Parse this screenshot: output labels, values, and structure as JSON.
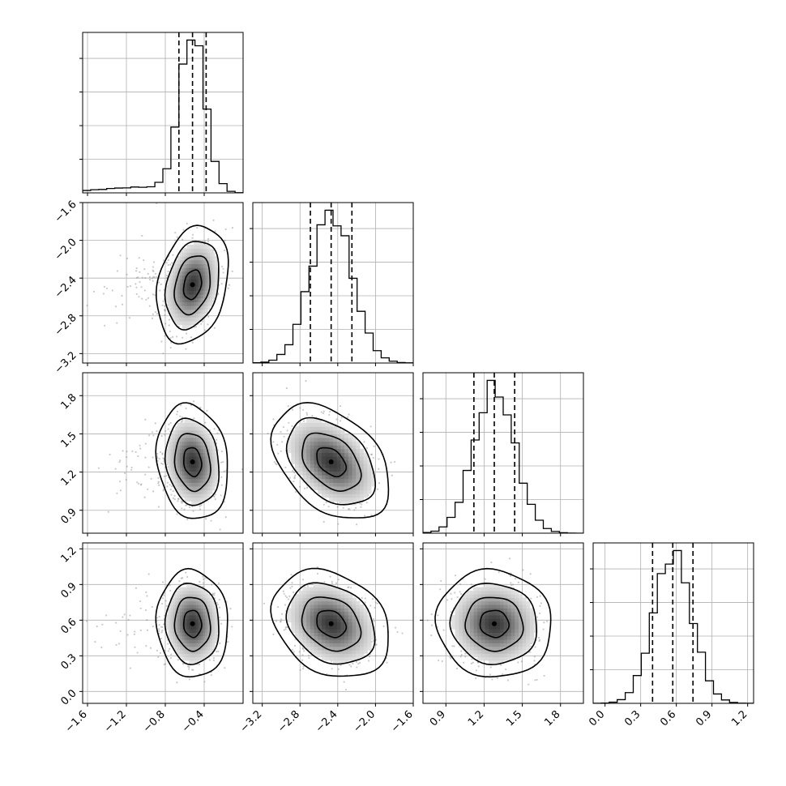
{
  "chart_data": {
    "type": "corner",
    "title": "",
    "parameters": [
      {
        "index": 0,
        "xlim": [
          -1.65,
          0.0
        ],
        "mean": -0.52,
        "std": 0.13,
        "quantiles": [
          -0.66,
          -0.52,
          -0.38
        ],
        "ticks": [
          -1.6,
          -1.2,
          -0.8,
          -0.4
        ],
        "tick_labels": [
          "−1.6",
          "−1.2",
          "−0.8",
          "−0.4"
        ]
      },
      {
        "index": 1,
        "xlim": [
          -3.3,
          -1.6
        ],
        "mean": -2.47,
        "std": 0.22,
        "quantiles": [
          -2.69,
          -2.47,
          -2.25
        ],
        "ticks": [
          -3.2,
          -2.8,
          -2.4,
          -2.0,
          -1.6
        ],
        "tick_labels": [
          "−3.2",
          "−2.8",
          "−2.4",
          "−2.0",
          "−1.6"
        ]
      },
      {
        "index": 2,
        "xlim": [
          0.72,
          1.98
        ],
        "mean": 1.28,
        "std": 0.16,
        "quantiles": [
          1.12,
          1.28,
          1.44
        ],
        "ticks": [
          0.9,
          1.2,
          1.5,
          1.8
        ],
        "tick_labels": [
          "0.9",
          "1.2",
          "1.5",
          "1.8"
        ]
      },
      {
        "index": 3,
        "xlim": [
          -0.1,
          1.25
        ],
        "mean": 0.57,
        "std": 0.16,
        "quantiles": [
          0.4,
          0.57,
          0.74
        ],
        "ticks": [
          0.0,
          0.3,
          0.6,
          0.9,
          1.2
        ],
        "tick_labels": [
          "0.0",
          "0.3",
          "0.6",
          "0.9",
          "1.2"
        ]
      }
    ],
    "correlations": [
      [
        0,
        1,
        0.25
      ],
      [
        0,
        2,
        -0.15
      ],
      [
        0,
        3,
        -0.05
      ],
      [
        1,
        2,
        -0.4
      ],
      [
        1,
        3,
        -0.25
      ],
      [
        2,
        3,
        -0.05
      ]
    ],
    "histogram_bins": 20,
    "quantile_levels": [
      0.16,
      0.5,
      0.84
    ],
    "contour_levels_sigma": [
      0.5,
      1.0,
      1.5,
      2.0
    ],
    "grid": true,
    "xlabels": [
      "",
      "",
      "",
      ""
    ],
    "ylabels": [
      "",
      "",
      "",
      ""
    ]
  }
}
